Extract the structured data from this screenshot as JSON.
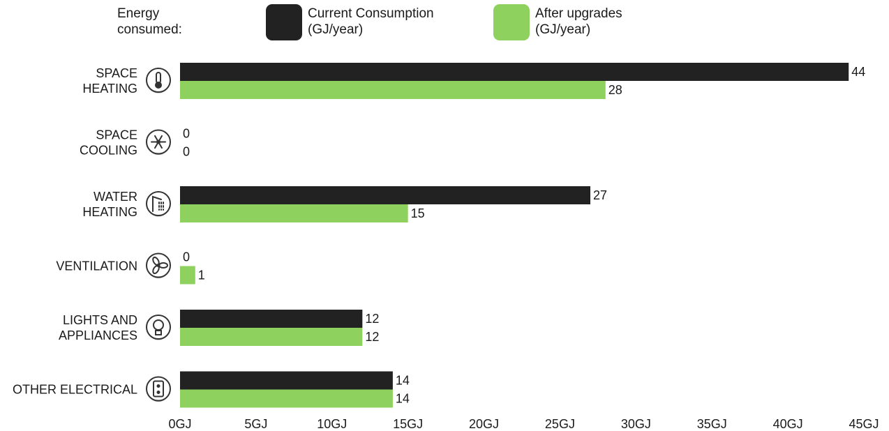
{
  "colors": {
    "current": "#222222",
    "after": "#8fd15f",
    "icon_stroke": "#333333"
  },
  "legend": {
    "title": "Energy\nconsumed:",
    "items": [
      {
        "label": "Current Consumption\n(GJ/year)",
        "color": "#222222"
      },
      {
        "label": "After upgrades\n(GJ/year)",
        "color": "#8fd15f"
      }
    ]
  },
  "chart_data": {
    "type": "bar",
    "orientation": "horizontal",
    "categories": [
      {
        "lines": [
          "SPACE",
          "HEATING"
        ],
        "icon": "thermometer-icon"
      },
      {
        "lines": [
          "SPACE",
          "COOLING"
        ],
        "icon": "snowflake-icon"
      },
      {
        "lines": [
          "WATER",
          "HEATING"
        ],
        "icon": "shower-icon"
      },
      {
        "lines": [
          "VENTILATION"
        ],
        "icon": "fan-icon"
      },
      {
        "lines": [
          "LIGHTS AND",
          "APPLIANCES"
        ],
        "icon": "lightbulb-icon"
      },
      {
        "lines": [
          "OTHER ELECTRICAL"
        ],
        "icon": "outlet-icon"
      }
    ],
    "series": [
      {
        "name": "Current Consumption (GJ/year)",
        "values": [
          44,
          0,
          27,
          0,
          12,
          14
        ]
      },
      {
        "name": "After upgrades (GJ/year)",
        "values": [
          28,
          0,
          15,
          1,
          12,
          14
        ]
      }
    ],
    "xlim": [
      0,
      45
    ],
    "xticks": [
      "0GJ",
      "5GJ",
      "10GJ",
      "15GJ",
      "20GJ",
      "25GJ",
      "30GJ",
      "35GJ",
      "40GJ",
      "45GJ"
    ],
    "grid": false,
    "legend_position": "top"
  }
}
